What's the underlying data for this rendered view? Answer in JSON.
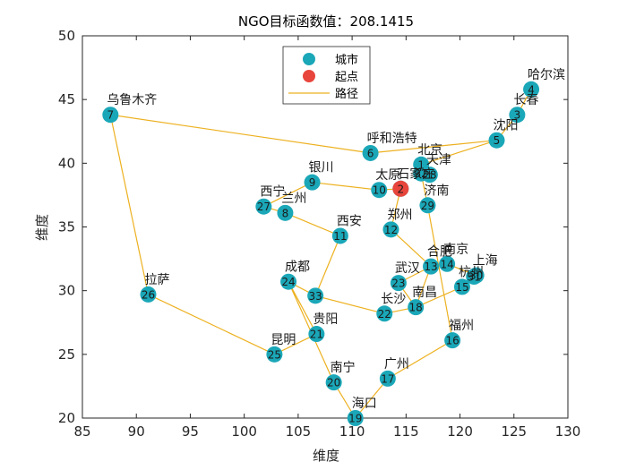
{
  "chart_data": {
    "type": "scatter",
    "title": "NGO目标函数值：208.1415",
    "xlabel": "维度",
    "ylabel": "维度",
    "xlim": [
      85,
      130
    ],
    "ylim": [
      20,
      50
    ],
    "xticks": [
      85,
      90,
      95,
      100,
      105,
      110,
      115,
      120,
      125,
      130
    ],
    "yticks": [
      20,
      25,
      30,
      35,
      40,
      45,
      50
    ],
    "grid": false,
    "legend_placement": "top-center",
    "legend": [
      {
        "label": "城市",
        "kind": "marker",
        "color": "#1aa7b8"
      },
      {
        "label": "起点",
        "kind": "marker",
        "color": "#e8453c"
      },
      {
        "label": "路径",
        "kind": "line",
        "color": "#edb120"
      }
    ],
    "colors": {
      "city": "#1aa7b8",
      "start": "#e8453c",
      "path": "#edb120"
    },
    "cities": [
      {
        "id": 1,
        "name": "北京",
        "x": 116.4,
        "y": 39.9
      },
      {
        "id": 2,
        "name": "石家庄",
        "x": 114.5,
        "y": 38.0
      },
      {
        "id": 3,
        "name": "长春",
        "x": 125.3,
        "y": 43.8
      },
      {
        "id": 4,
        "name": "哈尔滨",
        "x": 126.6,
        "y": 45.8
      },
      {
        "id": 5,
        "name": "沈阳",
        "x": 123.4,
        "y": 41.8
      },
      {
        "id": 6,
        "name": "呼和浩特",
        "x": 111.7,
        "y": 40.8
      },
      {
        "id": 7,
        "name": "乌鲁木齐",
        "x": 87.6,
        "y": 43.8
      },
      {
        "id": 8,
        "name": "兰州",
        "x": 103.8,
        "y": 36.1
      },
      {
        "id": 9,
        "name": "银川",
        "x": 106.3,
        "y": 38.5
      },
      {
        "id": 10,
        "name": "太原",
        "x": 112.5,
        "y": 37.9
      },
      {
        "id": 11,
        "name": "西安",
        "x": 108.9,
        "y": 34.3
      },
      {
        "id": 12,
        "name": "郑州",
        "x": 113.6,
        "y": 34.8
      },
      {
        "id": 13,
        "name": "合肥",
        "x": 117.3,
        "y": 31.9
      },
      {
        "id": 14,
        "name": "南京",
        "x": 118.8,
        "y": 32.1
      },
      {
        "id": 15,
        "name": "杭州",
        "x": 120.2,
        "y": 30.3
      },
      {
        "id": 16,
        "name": "福州",
        "x": 119.3,
        "y": 26.1
      },
      {
        "id": 17,
        "name": "广州",
        "x": 113.3,
        "y": 23.1
      },
      {
        "id": 18,
        "name": "南昌",
        "x": 115.9,
        "y": 28.7
      },
      {
        "id": 19,
        "name": "海口",
        "x": 110.3,
        "y": 20.0
      },
      {
        "id": 20,
        "name": "南宁",
        "x": 108.3,
        "y": 22.8
      },
      {
        "id": 21,
        "name": "贵阳",
        "x": 106.7,
        "y": 26.6
      },
      {
        "id": 22,
        "name": "长沙",
        "x": 113.0,
        "y": 28.2
      },
      {
        "id": 23,
        "name": "武汉",
        "x": 114.3,
        "y": 30.6
      },
      {
        "id": 24,
        "name": "成都",
        "x": 104.1,
        "y": 30.7
      },
      {
        "id": 25,
        "name": "昆明",
        "x": 102.8,
        "y": 25.0
      },
      {
        "id": 26,
        "name": "拉萨",
        "x": 91.1,
        "y": 29.7
      },
      {
        "id": 27,
        "name": "西宁",
        "x": 101.8,
        "y": 36.6
      },
      {
        "id": 28,
        "name": "天津",
        "x": 117.2,
        "y": 39.1
      },
      {
        "id": 29,
        "name": "济南",
        "x": 117.0,
        "y": 36.7
      },
      {
        "id": 30,
        "name": "上海",
        "x": 121.5,
        "y": 31.2
      },
      {
        "id": 31,
        "name": "",
        "x": 121.3,
        "y": 31.1
      },
      {
        "id": 32,
        "name": "",
        "x": 116.4,
        "y": 39.2
      },
      {
        "id": 33,
        "name": "",
        "x": 106.6,
        "y": 29.6
      }
    ],
    "start": {
      "x": 114.5,
      "y": 38.0
    },
    "route": [
      2,
      10,
      9,
      27,
      8,
      11,
      33,
      24,
      21,
      25,
      26,
      7,
      6,
      5,
      3,
      4,
      3,
      5,
      1,
      28,
      32,
      29,
      16,
      17,
      19,
      20,
      24,
      33,
      22,
      18,
      23,
      13,
      14,
      30,
      31,
      15,
      18,
      13,
      12,
      2
    ]
  }
}
